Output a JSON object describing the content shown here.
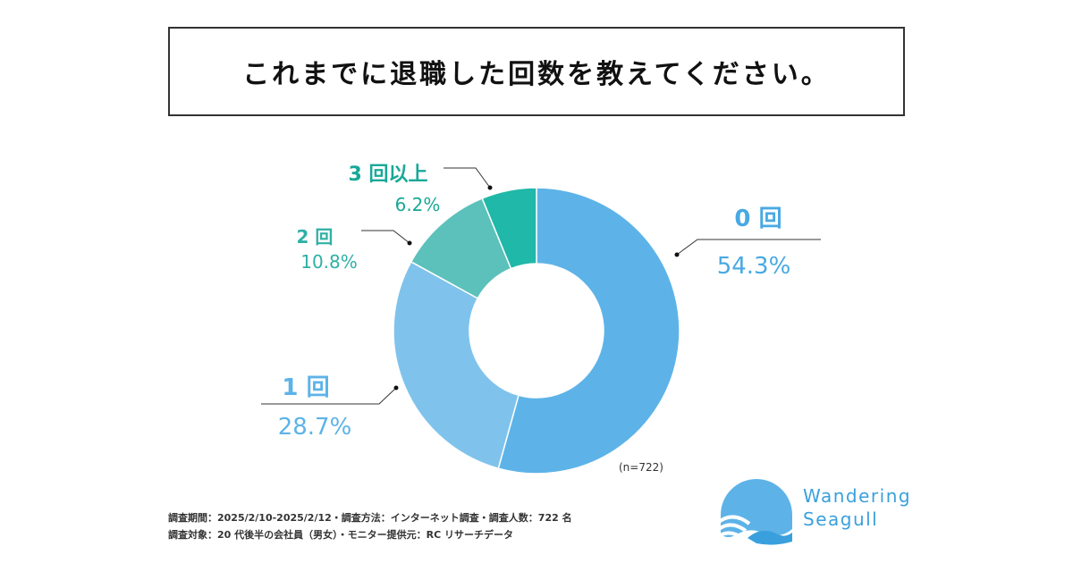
{
  "chart_data": {
    "type": "pie",
    "donut": true,
    "title": "これまでに退職した回数を教えてください。",
    "categories": [
      "0 回",
      "1 回",
      "2 回",
      "3 回以上"
    ],
    "values": [
      54.3,
      28.7,
      10.8,
      6.2
    ],
    "value_labels": [
      "54.3%",
      "28.7%",
      "10.8%",
      "6.2%"
    ],
    "colors": [
      "#5db3e8",
      "#7fc3ec",
      "#5cc1bb",
      "#20b8a8"
    ],
    "label_colors": [
      "#49a9e3",
      "#5db3e8",
      "#2fb0a5",
      "#19a897"
    ],
    "sample_size": "(n=722)"
  },
  "notes": {
    "line1": "調査期間：2025/2/10-2025/2/12・調査方法：インターネット調査・調査人数：722 名",
    "line2": "調査対象：20 代後半の会社員（男女）・モニター提供元：RC リサーチデータ"
  },
  "logo": {
    "line1": "Wandering",
    "line2": "Seagull",
    "color": "#3aa0dd"
  }
}
